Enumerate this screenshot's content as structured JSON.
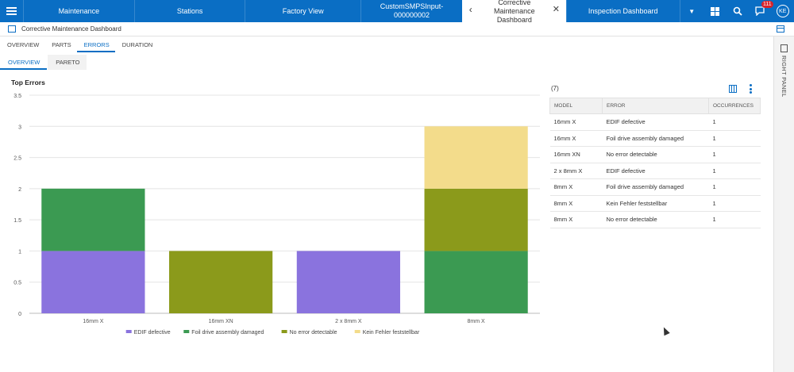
{
  "topbar": {
    "tabs": [
      {
        "label": "Maintenance"
      },
      {
        "label": "Stations"
      },
      {
        "label": "Factory View"
      },
      {
        "label": "CustomSMPSInput-000000002"
      },
      {
        "label": "Corrective Maintenance Dashboard",
        "active": true
      },
      {
        "label": "Inspection Dashboard"
      }
    ],
    "notification_count": "111",
    "user_initials": "KE",
    "accent": "#0a6ec4"
  },
  "page": {
    "title": "Corrective Maintenance Dashboard",
    "tabs": [
      "OVERVIEW",
      "PARTS",
      "ERRORS",
      "DURATION"
    ],
    "active_tab": "ERRORS",
    "subtabs": [
      "OVERVIEW",
      "PARETO"
    ],
    "active_subtab": "OVERVIEW"
  },
  "chart_data": {
    "type": "bar",
    "stacked": true,
    "title": "Top Errors",
    "categories": [
      "16mm X",
      "16mm XN",
      "2 x 8mm X",
      "8mm X"
    ],
    "series": [
      {
        "name": "EDIF defective",
        "color": "#8a73de",
        "values": [
          1,
          0,
          1,
          0
        ]
      },
      {
        "name": "Foil drive assembly damaged",
        "color": "#3b9a52",
        "values": [
          1,
          0,
          0,
          1
        ]
      },
      {
        "name": "No error detectable",
        "color": "#8b9a1b",
        "values": [
          0,
          1,
          0,
          1
        ]
      },
      {
        "name": "Kein Fehler feststellbar",
        "color": "#f3dc8b",
        "values": [
          0,
          0,
          0,
          1
        ]
      }
    ],
    "yticks": [
      "0",
      "0.5",
      "1",
      "1.5",
      "2",
      "2.5",
      "3",
      "3.5"
    ],
    "ylim": [
      0,
      3.5
    ],
    "grid": true,
    "legend": "bottom"
  },
  "table": {
    "count": "(7)",
    "headers": [
      "MODEL",
      "ERROR",
      "OCCURRENCES"
    ],
    "rows": [
      [
        "16mm X",
        "EDIF defective",
        "1"
      ],
      [
        "16mm X",
        "Foil drive assembly damaged",
        "1"
      ],
      [
        "16mm XN",
        "No error detectable",
        "1"
      ],
      [
        "2 x 8mm X",
        "EDIF defective",
        "1"
      ],
      [
        "8mm X",
        "Foil drive assembly damaged",
        "1"
      ],
      [
        "8mm X",
        "Kein Fehler feststellbar",
        "1"
      ],
      [
        "8mm X",
        "No error detectable",
        "1"
      ]
    ]
  },
  "right_panel": {
    "label": "RIGHT PANEL"
  }
}
